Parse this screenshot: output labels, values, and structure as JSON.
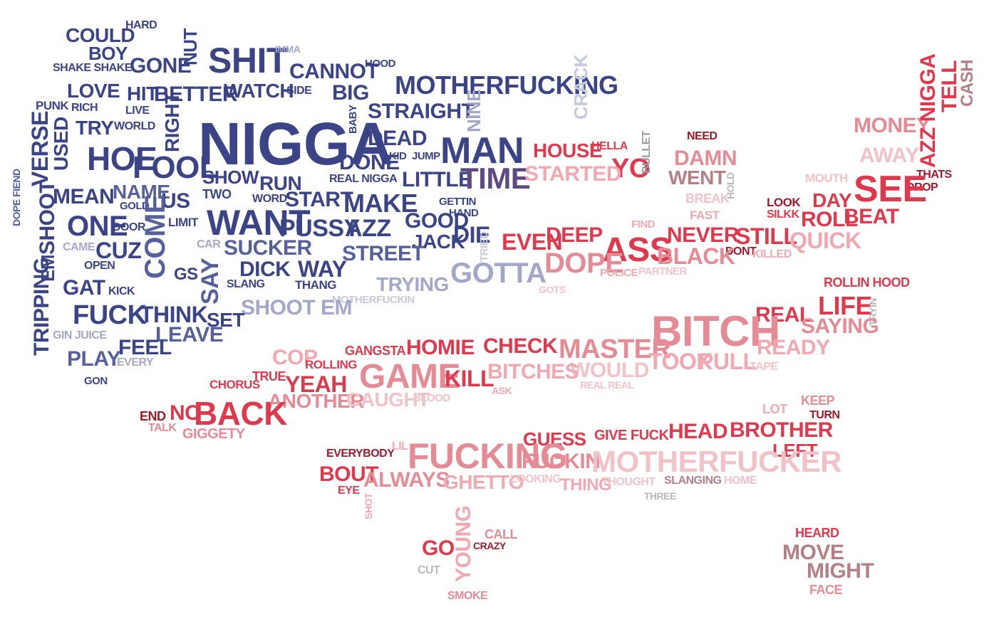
{
  "title": "Rap lyrics word cloud shaped like the United States map",
  "colors": {
    "navy": "#3b4487",
    "blue": "#56609a",
    "purple": "#5d4a82",
    "lavender": "#a4a8c8",
    "pale_lavender": "#c7c9dc",
    "red": "#e0394e",
    "dark_red": "#9c1a2a",
    "pink": "#e58b96",
    "pale_pink": "#f1c3c9",
    "mauve": "#b57f86",
    "grey": "#b8b8b8"
  },
  "words": [
    "NIGGA",
    "SHIT",
    "COULD",
    "HARD",
    "BOY",
    "SHAKE SHAKE",
    "GONE",
    "NUT",
    "IMMA",
    "CANNOT",
    "HOOD",
    "MOTHERFUCKING",
    "CRACK",
    "LOVE",
    "HIT",
    "BETTER",
    "WATCH",
    "SIDE",
    "BIG",
    "PUNK",
    "RICH",
    "LIVE",
    "RIGHT",
    "STRAIGHT",
    "BABY",
    "NINE",
    "TRY",
    "WORLD",
    "DEAD",
    "KID",
    "JUMP",
    "MAN",
    "HOE",
    "FOOL",
    "SHOW",
    "DONE",
    "REAL NIGGA",
    "LITTLE",
    "TIME",
    "VERSE",
    "USED",
    "DOPE FIEND",
    "MEAN",
    "NAME",
    "GOLD",
    "US",
    "TWO",
    "RUN",
    "WORD",
    "START",
    "MAKE",
    "GETTIN",
    "HAND",
    "SHOOT",
    "ONE",
    "DOOR",
    "COME",
    "LIMIT",
    "WANT",
    "PUSSY",
    "AZZ",
    "GOOD",
    "JACK",
    "DIE",
    "TRIED",
    "EM",
    "CAME",
    "CUZ",
    "CAR",
    "SUCKER",
    "OPEN",
    "DICK",
    "WAY",
    "STREET",
    "GOTTA",
    "TRIPPING",
    "GAT",
    "KICK",
    "GS",
    "SAY",
    "SLANG",
    "THANG",
    "TRYING",
    "GOTS",
    "MOTHERFUCKIN",
    "FUCK",
    "THINK",
    "SHOOT EM",
    "SET",
    "LEAVE",
    "GIN JUICE",
    "FEEL",
    "PLAY",
    "EVERY",
    "GON",
    "HOUSE",
    "HELLA",
    "YO",
    "BULLET",
    "STARTED",
    "NEED",
    "DAMN",
    "WENT",
    "HOLD",
    "BREAK",
    "FAST",
    "MONEY",
    "AWAY",
    "AZZ NIGGA",
    "TELL",
    "CASH",
    "MOUTH",
    "THATS",
    "DROP",
    "SEE",
    "LOOK",
    "SILKK",
    "DAY",
    "ROLL",
    "BEAT",
    "FIND",
    "EVEN",
    "DEEP",
    "ASS",
    "NEVER",
    "STILL",
    "QUICK",
    "DONT",
    "KILLED",
    "DOPE",
    "POLICE",
    "PARTNER",
    "BLACK",
    "ROLLIN HOOD",
    "LIFE",
    "TRYIN",
    "REAL",
    "SAYING",
    "BITCH",
    "MASTER",
    "READY",
    "TOOK",
    "PULL",
    "TAPE",
    "WOULD",
    "REAL REAL",
    "BITCHES",
    "ASK",
    "CHECK",
    "HOMIE",
    "GANGSTA",
    "COP",
    "ROLLING",
    "GAME",
    "KILL",
    "CHORUS",
    "TRUE",
    "YEAH",
    "ANOTHER",
    "CAUGHT",
    "BLOOD",
    "END",
    "NO",
    "BACK",
    "TALK",
    "GIGGETY",
    "KEEP",
    "TURN",
    "LOT",
    "GUESS",
    "GIVE FUCK",
    "HEAD",
    "BROTHER",
    "LEFT",
    "EVERYBODY",
    "LIL",
    "FUCKING",
    "FUCKIN",
    "MOTHERFUCKER",
    "BOUT",
    "EYE",
    "ALWAYS",
    "GHETTO",
    "LOOKING",
    "THING",
    "THOUGHT",
    "SLANGING",
    "HOME",
    "THREE",
    "SHOT",
    "CALL",
    "CRAZY",
    "GO",
    "YOUNG",
    "CUT",
    "SMOKE",
    "HEARD",
    "MOVE",
    "MIGHT",
    "FACE"
  ]
}
